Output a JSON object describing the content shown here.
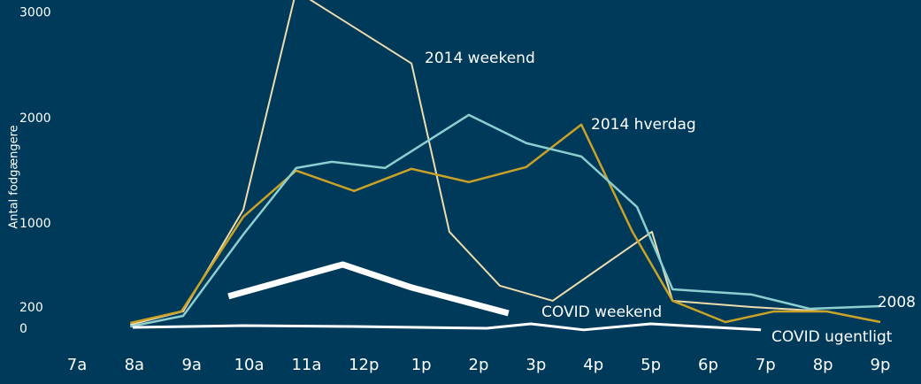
{
  "chart_data": {
    "type": "line",
    "y_label": "Antal fodgængere",
    "xlim": [
      7,
      21
    ],
    "ylim": [
      0,
      3140
    ],
    "xticks": [
      {
        "value": 7,
        "label": "7a"
      },
      {
        "value": 8,
        "label": "8a"
      },
      {
        "value": 9,
        "label": "9a"
      },
      {
        "value": 10,
        "label": "10a"
      },
      {
        "value": 11,
        "label": "11a"
      },
      {
        "value": 12,
        "label": "12p"
      },
      {
        "value": 13,
        "label": "1p"
      },
      {
        "value": 14,
        "label": "2p"
      },
      {
        "value": 15,
        "label": "3p"
      },
      {
        "value": 16,
        "label": "4p"
      },
      {
        "value": 17,
        "label": "5p"
      },
      {
        "value": 18,
        "label": "6p"
      },
      {
        "value": 19,
        "label": "7p"
      },
      {
        "value": 20,
        "label": "8p"
      },
      {
        "value": 21,
        "label": "9p"
      }
    ],
    "yticks": [
      0,
      200,
      1000,
      2000,
      3000
    ],
    "series": [
      {
        "name": "2014 weekend",
        "color": "#efdcae",
        "width": 2,
        "x": [
          7.93,
          8.85,
          9.9,
          10.82,
          12.83,
          13.49,
          14.37,
          15.29,
          17.02,
          17.38,
          18.76,
          20.07,
          21.0
        ],
        "values": [
          59,
          185,
          1151,
          3227,
          2538,
          941,
          429,
          286,
          941,
          286,
          227,
          185,
          84
        ]
      },
      {
        "name": "2014 hverdag",
        "color": "#c9a227",
        "width": 2.5,
        "x": [
          7.93,
          8.82,
          9.9,
          10.82,
          11.83,
          12.83,
          13.83,
          14.83,
          15.79,
          16.68,
          17.38,
          18.3,
          19.15,
          20.07,
          21.0
        ],
        "values": [
          76,
          185,
          1084,
          1521,
          1328,
          1538,
          1412,
          1555,
          1958,
          941,
          286,
          84,
          185,
          185,
          84
        ]
      },
      {
        "name": "2008",
        "color": "#8ccfd0",
        "width": 2.5,
        "x": [
          7.93,
          8.85,
          9.9,
          10.82,
          11.44,
          12.37,
          13.83,
          14.83,
          15.79,
          16.76,
          17.38,
          18.76,
          19.77,
          21.0
        ],
        "values": [
          42,
          143,
          916,
          1546,
          1605,
          1546,
          2050,
          1782,
          1655,
          1176,
          395,
          345,
          210,
          235
        ]
      },
      {
        "name": "COVID weekend",
        "color": "#ffffff",
        "width": 7,
        "x": [
          9.64,
          11.63,
          12.83,
          14.52
        ],
        "values": [
          328,
          630,
          412,
          168
        ]
      },
      {
        "name": "COVID ugentligt",
        "color": "#ffffff",
        "width": 3,
        "x": [
          7.97,
          9.9,
          11.83,
          14.14,
          14.91,
          15.83,
          17.0,
          18.92
        ],
        "values": [
          34,
          50,
          42,
          25,
          67,
          10,
          67,
          10
        ]
      }
    ]
  }
}
